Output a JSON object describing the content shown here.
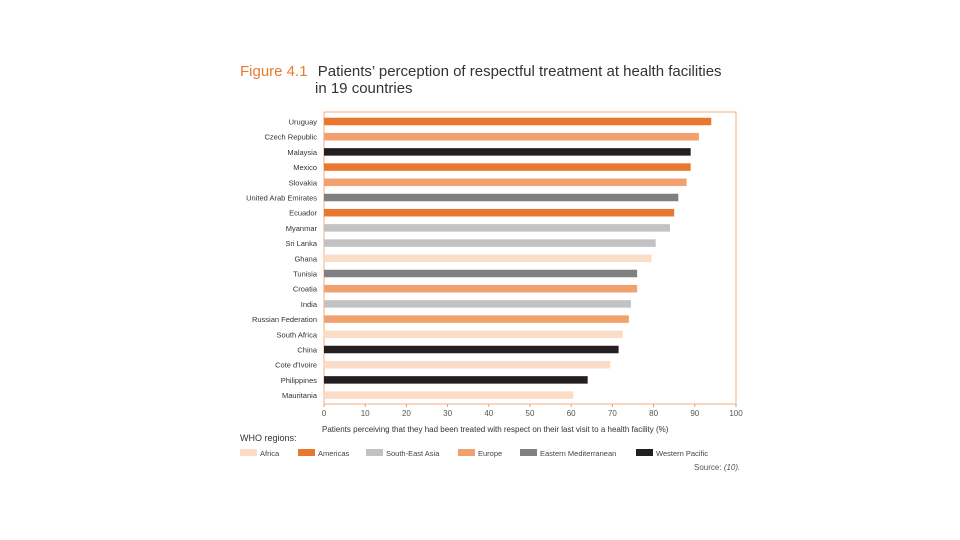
{
  "figure": {
    "number": "Figure 4.1",
    "title_line1": "Patients’ perception of respectful treatment at health facilities",
    "title_line2": "in 19 countries",
    "source_label": "Source:",
    "source_ref": "(10)."
  },
  "regions_label": "WHO regions:",
  "colors": {
    "Africa": "#fbdcc6",
    "Americas": "#e8782f",
    "South-East Asia": "#c2c2c4",
    "Europe": "#f0a16e",
    "Eastern Mediterranean": "#808082",
    "Western Pacific": "#231f20",
    "frame": "#f1ac82",
    "tick": "#e89a6a"
  },
  "chart_data": {
    "type": "bar",
    "orientation": "horizontal",
    "title": "Patients’ perception of respectful treatment at health facilities in 19 countries",
    "xlabel": "Patients perceiving that they had been treated with respect on their last visit to a health facility (%)",
    "ylabel": "",
    "xlim": [
      0,
      100
    ],
    "xticks": [
      0,
      10,
      20,
      30,
      40,
      50,
      60,
      70,
      80,
      90,
      100
    ],
    "grid": false,
    "legend_position": "bottom",
    "legend_title": "WHO regions:",
    "legend": [
      "Africa",
      "Americas",
      "South-East Asia",
      "Europe",
      "Eastern Mediterranean",
      "Western Pacific"
    ],
    "categories": [
      "Uruguay",
      "Czech Republic",
      "Malaysia",
      "Mexico",
      "Slovakia",
      "United Arab Emirates",
      "Ecuador",
      "Myanmar",
      "Sri Lanka",
      "Ghana",
      "Tunisia",
      "Croatia",
      "India",
      "Russian Federation",
      "South Africa",
      "China",
      "Cote d'Ivoire",
      "Philippines",
      "Mauritania"
    ],
    "values": [
      94,
      91,
      89,
      89,
      88,
      86,
      85,
      84,
      80.5,
      79.5,
      76,
      76,
      74.5,
      74,
      72.5,
      71.5,
      69.5,
      64,
      60.5
    ],
    "regions": [
      "Americas",
      "Europe",
      "Western Pacific",
      "Americas",
      "Europe",
      "Eastern Mediterranean",
      "Americas",
      "South-East Asia",
      "South-East Asia",
      "Africa",
      "Eastern Mediterranean",
      "Europe",
      "South-East Asia",
      "Europe",
      "Africa",
      "Western Pacific",
      "Africa",
      "Western Pacific",
      "Africa"
    ]
  }
}
